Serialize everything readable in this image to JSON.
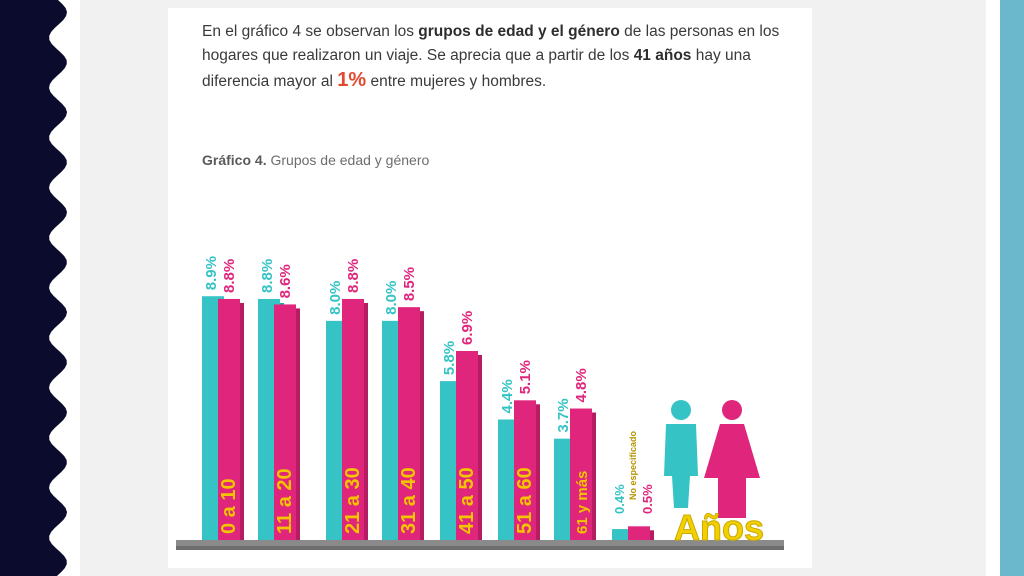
{
  "intro": {
    "p1": "En el gráfico 4 se observan los ",
    "b1": "grupos de edad y el género",
    "p2": " de las personas en los hogares que realizaron un viaje. Se aprecia que a partir de los ",
    "b2": "41 años",
    "p3": " hay una diferencia mayor al ",
    "hl": "1%",
    "p4": " entre mujeres y hombres."
  },
  "caption": {
    "label": "Gráfico 4.",
    "text": " Grupos de edad y género"
  },
  "colors": {
    "men": "#36c3c6",
    "women": "#e0267c",
    "category_text": "#f2c500",
    "left_band": "#0b0b2e",
    "right_band": "#6bb7cb"
  },
  "chart_data": {
    "type": "bar",
    "categories": [
      "0 a 10",
      "11 a 20",
      "21 a 30",
      "31 a 40",
      "41 a 50",
      "51 a 60",
      "61 y más",
      "No especificado"
    ],
    "series": [
      {
        "values": [
          8.9,
          8.8,
          8.0,
          8.0,
          5.8,
          4.4,
          3.7,
          0.4
        ]
      },
      {
        "values": [
          8.8,
          8.6,
          8.8,
          8.5,
          6.9,
          5.1,
          4.8,
          0.5
        ]
      }
    ],
    "value_labels": [
      [
        "8.9%",
        "8.8%"
      ],
      [
        "8.8%",
        "8.6%"
      ],
      [
        "8.0%",
        "8.8%"
      ],
      [
        "8.0%",
        "8.5%"
      ],
      [
        "5.8%",
        "6.9%"
      ],
      [
        "4.4%",
        "5.1%"
      ],
      [
        "3.7%",
        "4.8%"
      ],
      [
        "0.4%",
        "0.5%"
      ]
    ],
    "axis_word": "Años",
    "ylim": [
      0,
      9.2
    ],
    "legend": "icons at bottom-right"
  }
}
